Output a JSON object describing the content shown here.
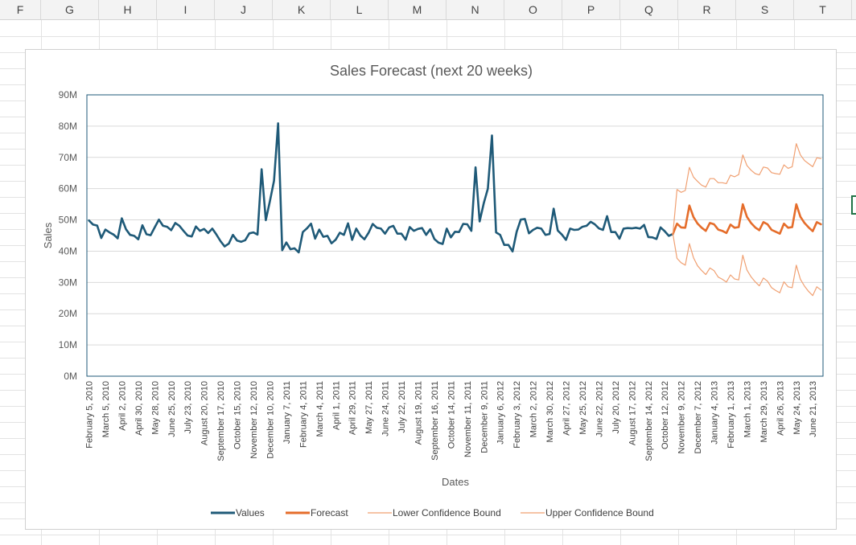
{
  "sheet": {
    "columns": [
      "F",
      "G",
      "H",
      "I",
      "J",
      "K",
      "L",
      "M",
      "N",
      "O",
      "P",
      "Q",
      "R",
      "S",
      "T"
    ]
  },
  "chart_data": {
    "type": "line",
    "title": "Sales Forecast (next 20 weeks)",
    "xlabel": "Dates",
    "ylabel": "Sales",
    "ylim": [
      0,
      90000000
    ],
    "yticks": [
      {
        "value": 0,
        "label": "0M"
      },
      {
        "value": 10000000,
        "label": "10M"
      },
      {
        "value": 20000000,
        "label": "20M"
      },
      {
        "value": 30000000,
        "label": "30M"
      },
      {
        "value": 40000000,
        "label": "40M"
      },
      {
        "value": 50000000,
        "label": "50M"
      },
      {
        "value": 60000000,
        "label": "60M"
      },
      {
        "value": 70000000,
        "label": "70M"
      },
      {
        "value": 80000000,
        "label": "80M"
      },
      {
        "value": 90000000,
        "label": "90M"
      }
    ],
    "grid": true,
    "legend": "bottom",
    "x_start": "February 5, 2010",
    "x_interval": "1 week",
    "x_tick_labels": [
      "February 5, 2010",
      "March 5, 2010",
      "April 2, 2010",
      "April 30, 2010",
      "May 28, 2010",
      "June 25, 2010",
      "July 23, 2010",
      "August 20, 2010",
      "September 17, 2010",
      "October 15, 2010",
      "November 12, 2010",
      "December 10, 2010",
      "January 7, 2011",
      "February 4, 2011",
      "March 4, 2011",
      "April 1, 2011",
      "April 29, 2011",
      "May 27, 2011",
      "June 24, 2011",
      "July 22, 2011",
      "August 19, 2011",
      "September 16, 2011",
      "October 14, 2011",
      "November 11, 2011",
      "December 9, 2011",
      "January 6, 2012",
      "February 3, 2012",
      "March 2, 2012",
      "March 30, 2012",
      "April 27, 2012",
      "May 25, 2012",
      "June 22, 2012",
      "July 20, 2012",
      "August 17, 2012",
      "September 14, 2012",
      "October 12, 2012",
      "November 9, 2012",
      "December 7, 2012",
      "January 4, 2013",
      "February 1, 2013",
      "March 1, 2013",
      "March 29, 2013",
      "April 26, 2013",
      "May 24, 2013",
      "June 21, 2013"
    ],
    "series": [
      {
        "name": "Values",
        "color": "#1f5a78",
        "values": [
          49.8,
          48.5,
          48.2,
          44.2,
          46.9,
          46.0,
          45.3,
          44.1,
          50.5,
          47.0,
          45.2,
          44.9,
          43.8,
          48.3,
          45.4,
          45.1,
          47.6,
          50.1,
          48.1,
          47.8,
          46.7,
          49.0,
          48.1,
          46.5,
          45.0,
          44.7,
          47.9,
          46.5,
          47.1,
          45.8,
          47.2,
          45.3,
          43.2,
          41.5,
          42.4,
          45.2,
          43.4,
          43.0,
          43.5,
          45.7,
          46.0,
          45.3,
          66.2,
          49.9,
          56.0,
          62.5,
          80.9,
          40.3,
          42.8,
          40.6,
          40.9,
          39.6,
          46.1,
          47.3,
          48.8,
          44.0,
          46.9,
          44.6,
          44.9,
          42.5,
          43.7,
          45.9,
          45.2,
          48.9,
          43.6,
          47.2,
          45.0,
          43.8,
          45.9,
          48.7,
          47.5,
          47.2,
          45.6,
          47.6,
          48.1,
          45.6,
          45.6,
          43.7,
          47.7,
          46.5,
          47.1,
          47.4,
          45.2,
          47.0,
          43.9,
          42.7,
          42.3,
          47.2,
          44.4,
          46.2,
          46.1,
          48.7,
          48.6,
          46.5,
          66.8,
          49.5,
          55.3,
          60.0,
          77.0,
          46.0,
          45.2,
          42.0,
          42.0,
          39.9,
          46.2,
          50.1,
          50.3,
          45.7,
          46.8,
          47.5,
          47.2,
          45.2,
          45.5,
          53.6,
          46.6,
          45.3,
          43.6,
          47.2,
          46.8,
          46.9,
          47.8,
          48.1,
          49.4,
          48.6,
          47.3,
          46.8,
          51.2,
          46.1,
          46.1,
          44.0,
          47.2,
          47.4,
          47.3,
          47.5,
          47.2,
          48.4,
          44.5,
          44.4,
          43.9,
          47.6,
          46.4,
          44.9,
          45.5
        ]
      },
      {
        "name": "Forecast",
        "color": "#e56d2b",
        "values": [
          45.5,
          48.8,
          47.6,
          47.5,
          54.6,
          50.9,
          48.8,
          47.5,
          46.5,
          49.0,
          48.6,
          46.9,
          46.5,
          45.8,
          48.5,
          47.5,
          47.7,
          55.0,
          51.0,
          49.0,
          47.6,
          46.7,
          49.3,
          48.6,
          46.8,
          46.2,
          45.6,
          48.8,
          47.5,
          47.7,
          55.0,
          51.0,
          49.0,
          47.6,
          46.4,
          49.3,
          48.6
        ]
      },
      {
        "name": "Lower Confidence Bound",
        "color": "#f0a072",
        "values": [
          45.5,
          37.7,
          36.3,
          35.5,
          42.4,
          37.9,
          35.3,
          33.8,
          32.5,
          34.6,
          33.8,
          31.7,
          31.0,
          30.1,
          32.4,
          31.1,
          30.8,
          38.7,
          34.0,
          31.8,
          30.2,
          28.9,
          31.4,
          30.4,
          28.3,
          27.4,
          26.7,
          30.2,
          28.6,
          28.3,
          35.5,
          31.0,
          28.8,
          27.1,
          25.8,
          28.6,
          27.6
        ]
      },
      {
        "name": "Upper Confidence Bound",
        "color": "#f0a072",
        "values": [
          45.5,
          59.7,
          58.8,
          59.4,
          66.8,
          63.7,
          62.3,
          61.1,
          60.5,
          63.2,
          63.2,
          61.9,
          61.9,
          61.6,
          64.3,
          63.8,
          64.5,
          70.8,
          67.4,
          65.9,
          64.8,
          64.4,
          66.9,
          66.6,
          65.1,
          64.8,
          64.6,
          67.6,
          66.5,
          67.0,
          74.4,
          70.8,
          69.0,
          68.0,
          67.0,
          69.9,
          69.6
        ]
      }
    ]
  }
}
